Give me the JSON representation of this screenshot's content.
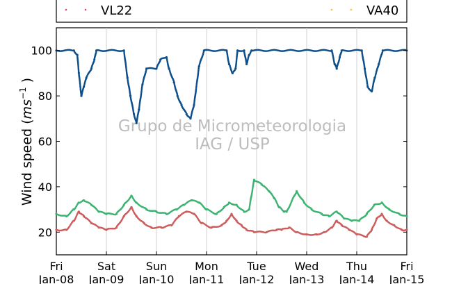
{
  "chart_data": {
    "type": "scatter",
    "title": "",
    "xlabel": "",
    "ylabel_main": "Wind speed (",
    "ylabel_unit": "ms",
    "ylabel_exp": "−1",
    "ylabel_close": ")",
    "xlim": [
      0,
      7
    ],
    "ylim": [
      10,
      110
    ],
    "grid": "vertical",
    "legend_placement": "top, clipped",
    "watermark": [
      "Grupo de Micrometeorologia",
      "IAG / USP"
    ],
    "x_ticks": [
      {
        "x": 0,
        "day": "Fri",
        "date": "Jan-08"
      },
      {
        "x": 1,
        "day": "Sat",
        "date": "Jan-09"
      },
      {
        "x": 2,
        "day": "Sun",
        "date": "Jan-10"
      },
      {
        "x": 3,
        "day": "Mon",
        "date": "Jan-11"
      },
      {
        "x": 4,
        "day": "Tue",
        "date": "Jan-12"
      },
      {
        "x": 5,
        "day": "Wed",
        "date": "Jan-13"
      },
      {
        "x": 6,
        "day": "Thu",
        "date": "Jan-14"
      },
      {
        "x": 7,
        "day": "Fri",
        "date": "Jan-15"
      }
    ],
    "y_ticks": [
      20,
      40,
      60,
      80,
      100
    ],
    "legend": [
      {
        "label": "VL22",
        "color": "#d9455f"
      },
      {
        "label": "VA40",
        "color": "#f0c040"
      }
    ],
    "series": [
      {
        "color": "#0d4f8b",
        "points": [
          [
            0.0,
            100
          ],
          [
            0.35,
            100
          ],
          [
            0.42,
            98
          ],
          [
            0.45,
            90
          ],
          [
            0.5,
            80
          ],
          [
            0.55,
            84
          ],
          [
            0.6,
            88
          ],
          [
            0.7,
            92
          ],
          [
            0.76,
            96
          ],
          [
            0.8,
            100
          ],
          [
            1.35,
            100
          ],
          [
            1.42,
            88
          ],
          [
            1.48,
            80
          ],
          [
            1.55,
            72
          ],
          [
            1.6,
            68
          ],
          [
            1.65,
            74
          ],
          [
            1.72,
            85
          ],
          [
            1.8,
            92
          ],
          [
            2.0,
            92
          ],
          [
            2.08,
            96
          ],
          [
            2.2,
            97
          ],
          [
            2.25,
            92
          ],
          [
            2.35,
            86
          ],
          [
            2.42,
            80
          ],
          [
            2.5,
            76
          ],
          [
            2.6,
            72
          ],
          [
            2.68,
            70
          ],
          [
            2.75,
            76
          ],
          [
            2.85,
            93
          ],
          [
            2.95,
            100
          ],
          [
            3.4,
            100
          ],
          [
            3.45,
            94
          ],
          [
            3.52,
            90
          ],
          [
            3.58,
            92
          ],
          [
            3.62,
            100
          ],
          [
            3.75,
            100
          ],
          [
            3.8,
            94
          ],
          [
            3.85,
            98
          ],
          [
            3.9,
            100
          ],
          [
            5.5,
            100
          ],
          [
            5.56,
            94
          ],
          [
            5.6,
            92
          ],
          [
            5.66,
            97
          ],
          [
            5.7,
            100
          ],
          [
            6.1,
            100
          ],
          [
            6.16,
            92
          ],
          [
            6.22,
            84
          ],
          [
            6.3,
            82
          ],
          [
            6.36,
            88
          ],
          [
            6.44,
            94
          ],
          [
            6.52,
            100
          ],
          [
            7.0,
            100
          ]
        ]
      },
      {
        "color": "#3cb371",
        "points": [
          [
            0.0,
            28
          ],
          [
            0.2,
            27
          ],
          [
            0.35,
            30
          ],
          [
            0.45,
            33
          ],
          [
            0.55,
            34
          ],
          [
            0.7,
            32
          ],
          [
            0.85,
            29
          ],
          [
            1.0,
            28
          ],
          [
            1.2,
            28
          ],
          [
            1.35,
            32
          ],
          [
            1.5,
            36
          ],
          [
            1.6,
            33
          ],
          [
            1.8,
            30
          ],
          [
            2.0,
            29
          ],
          [
            2.2,
            28
          ],
          [
            2.4,
            30
          ],
          [
            2.55,
            32
          ],
          [
            2.7,
            34
          ],
          [
            2.85,
            33
          ],
          [
            3.0,
            30
          ],
          [
            3.2,
            28
          ],
          [
            3.35,
            31
          ],
          [
            3.45,
            33
          ],
          [
            3.6,
            32
          ],
          [
            3.75,
            29
          ],
          [
            3.85,
            30
          ],
          [
            3.95,
            43
          ],
          [
            4.1,
            41
          ],
          [
            4.25,
            38
          ],
          [
            4.35,
            35
          ],
          [
            4.45,
            31
          ],
          [
            4.55,
            29
          ],
          [
            4.6,
            29
          ],
          [
            4.8,
            38
          ],
          [
            4.95,
            33
          ],
          [
            5.1,
            30
          ],
          [
            5.3,
            28
          ],
          [
            5.45,
            27
          ],
          [
            5.6,
            29
          ],
          [
            5.75,
            26
          ],
          [
            5.9,
            25
          ],
          [
            6.05,
            25
          ],
          [
            6.2,
            28
          ],
          [
            6.35,
            32
          ],
          [
            6.5,
            33
          ],
          [
            6.65,
            30
          ],
          [
            6.85,
            28
          ],
          [
            7.0,
            27
          ]
        ]
      },
      {
        "color": "#cd5c5c",
        "points": [
          [
            0.0,
            21
          ],
          [
            0.2,
            21
          ],
          [
            0.35,
            25
          ],
          [
            0.45,
            29
          ],
          [
            0.55,
            27
          ],
          [
            0.7,
            24
          ],
          [
            0.85,
            22
          ],
          [
            1.0,
            21
          ],
          [
            1.2,
            22
          ],
          [
            1.35,
            27
          ],
          [
            1.5,
            31
          ],
          [
            1.6,
            27
          ],
          [
            1.75,
            24
          ],
          [
            1.9,
            22
          ],
          [
            2.1,
            22
          ],
          [
            2.3,
            23
          ],
          [
            2.45,
            27
          ],
          [
            2.6,
            29
          ],
          [
            2.75,
            28
          ],
          [
            2.9,
            24
          ],
          [
            3.1,
            22
          ],
          [
            3.3,
            23
          ],
          [
            3.4,
            25
          ],
          [
            3.5,
            28
          ],
          [
            3.6,
            25
          ],
          [
            3.7,
            23
          ],
          [
            3.8,
            21
          ],
          [
            3.95,
            20
          ],
          [
            4.2,
            20
          ],
          [
            4.4,
            21
          ],
          [
            4.5,
            21
          ],
          [
            4.65,
            22
          ],
          [
            4.8,
            20
          ],
          [
            5.0,
            19
          ],
          [
            5.2,
            19
          ],
          [
            5.35,
            20
          ],
          [
            5.5,
            22
          ],
          [
            5.6,
            25
          ],
          [
            5.7,
            23
          ],
          [
            5.85,
            21
          ],
          [
            6.0,
            19
          ],
          [
            6.2,
            18
          ],
          [
            6.3,
            21
          ],
          [
            6.4,
            26
          ],
          [
            6.5,
            28
          ],
          [
            6.6,
            25
          ],
          [
            6.75,
            23
          ],
          [
            6.9,
            21
          ],
          [
            7.0,
            21
          ]
        ]
      }
    ]
  }
}
